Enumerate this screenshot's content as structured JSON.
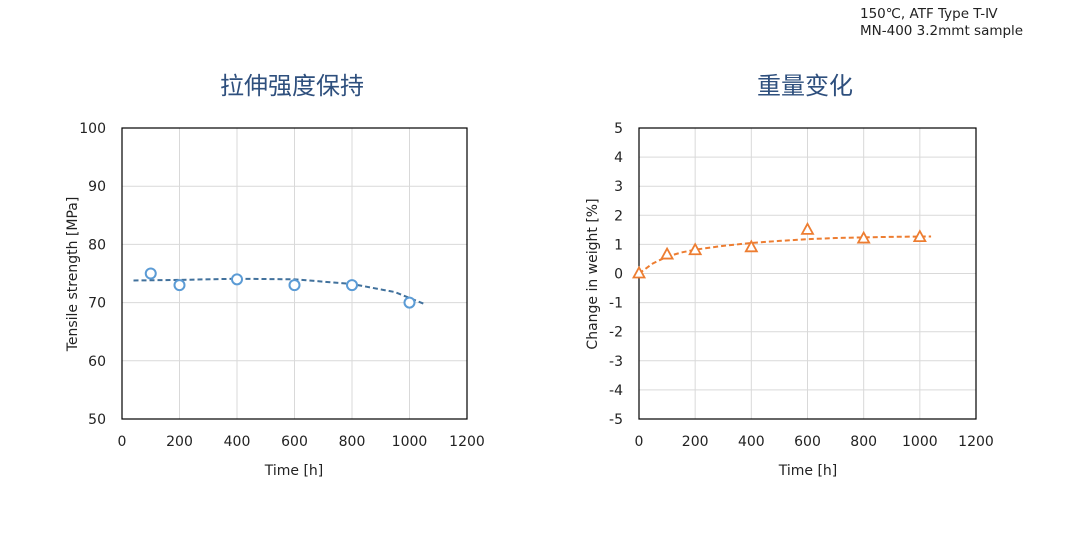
{
  "header_note": {
    "line1": "150℃, ATF Type T-Ⅳ",
    "line2": "MN-400 3.2mmt sample"
  },
  "chart_data": [
    {
      "type": "scatter",
      "title": "拉伸强度保持",
      "xlabel": "Time [h]",
      "ylabel": "Tensile strength [MPa]",
      "xlim": [
        0,
        1200
      ],
      "ylim": [
        50,
        100
      ],
      "xticks": [
        0,
        200,
        400,
        600,
        800,
        1000,
        1200
      ],
      "yticks": [
        50,
        60,
        70,
        80,
        90,
        100
      ],
      "grid": true,
      "marker": "circle",
      "color": "#5b9bd5",
      "trend_color": "#41719c",
      "series": [
        {
          "x": [
            100,
            200,
            400,
            600,
            800,
            1000
          ],
          "y": [
            75,
            73,
            74,
            73,
            73,
            70
          ]
        }
      ],
      "trendline": {
        "x": [
          40,
          200,
          400,
          600,
          800,
          950,
          1050
        ],
        "y": [
          73.8,
          73.9,
          74.1,
          74.0,
          73.2,
          71.8,
          69.8
        ]
      }
    },
    {
      "type": "scatter",
      "title": "重量变化",
      "xlabel": "Time [h]",
      "ylabel": "Change in weight [%]",
      "xlim": [
        0,
        1200
      ],
      "ylim": [
        -5,
        5
      ],
      "xticks": [
        0,
        200,
        400,
        600,
        800,
        1000,
        1200
      ],
      "yticks": [
        -5,
        -4,
        -3,
        -2,
        -1,
        0,
        1,
        2,
        3,
        4,
        5
      ],
      "grid": true,
      "marker": "triangle",
      "color": "#ed7d31",
      "trend_color": "#ed7d31",
      "series": [
        {
          "x": [
            0,
            100,
            200,
            400,
            600,
            800,
            1000
          ],
          "y": [
            0,
            0.65,
            0.8,
            0.9,
            1.5,
            1.2,
            1.25
          ]
        }
      ],
      "trendline": {
        "x": [
          0,
          50,
          100,
          150,
          200,
          300,
          400,
          500,
          600,
          700,
          800,
          900,
          1000,
          1040
        ],
        "y": [
          0,
          0.35,
          0.58,
          0.72,
          0.82,
          0.95,
          1.05,
          1.12,
          1.18,
          1.22,
          1.24,
          1.26,
          1.27,
          1.27
        ]
      }
    }
  ]
}
